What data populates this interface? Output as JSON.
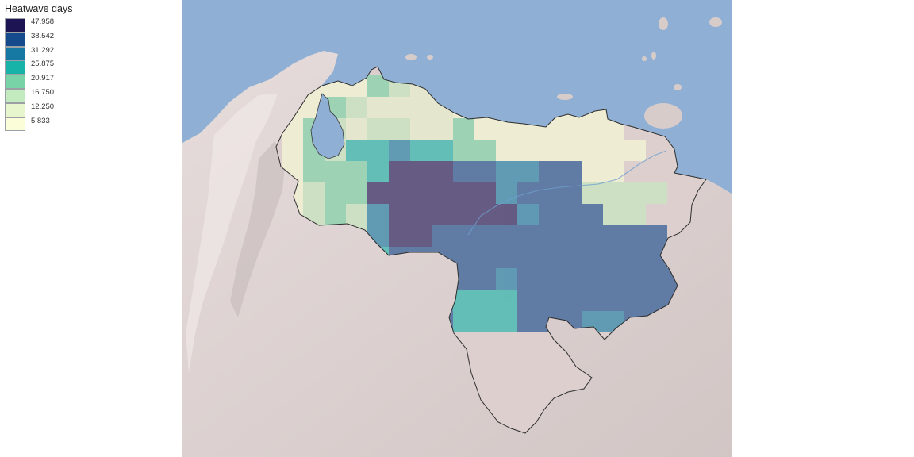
{
  "legend": {
    "title": "Heatwave days",
    "classes": [
      {
        "label": "47.958",
        "color": "#1d1454"
      },
      {
        "label": "38.542",
        "color": "#154a8c"
      },
      {
        "label": "31.292",
        "color": "#1579a4"
      },
      {
        "label": "25.875",
        "color": "#18b3a8"
      },
      {
        "label": "20.917",
        "color": "#78d3a6"
      },
      {
        "label": "16.750",
        "color": "#c3ebbf"
      },
      {
        "label": "12.250",
        "color": "#e8f6ce"
      },
      {
        "label": "5.833",
        "color": "#fbfdd8"
      }
    ]
  },
  "map": {
    "ocean_color": "#8fb0d4",
    "land_color": "#d8cccb",
    "heat_grid": [
      "....LMN.........",
      "..LMNNNN........",
      ".LMNMMNNO.......",
      ".LMPPQPPOO.......",
      ".LLLPHHHGGFFEE..",
      ".MLOHHHHHHFEEEMMMM",
      ".MLMQHHHHHHFEEEMM",
      "..MMQHHEEEGGEEKEKK",
      "..MMPEEEEEGGEEKKKK",
      "...OPEEEEEFGGKKKKKK",
      "....FFFFDDDEGGKKKKKK",
      "......KKDDDEGEFFKK"
    ]
  }
}
